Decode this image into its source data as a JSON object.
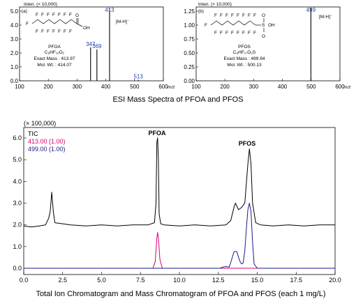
{
  "captions": {
    "spectra": "ESI Mass Spectra of PFOA and PFOS",
    "chromatogram": "Total Ion Chromatogram and Mass Chromatogram of PFOA and PFOS (each 1 mg/L)"
  },
  "colors": {
    "tic": "#000000",
    "m413": "#d4006e",
    "m499": "#1a1a8c",
    "peak_label": "#1f3fa8"
  },
  "chart_data": [
    {
      "type": "bar",
      "panel_label": "(a)",
      "yunit": "Inten. (× 10,000)",
      "xunit": "m/z",
      "xlim": [
        100,
        600
      ],
      "ylim": [
        0,
        5.0
      ],
      "xticks": [
        "100",
        "200",
        "300",
        "400",
        "500",
        "600"
      ],
      "yticks": [
        "0.0",
        "1.0",
        "2.0",
        "3.0",
        "4.0",
        "5.0"
      ],
      "peaks": [
        {
          "x": 347,
          "y": 2.4,
          "label": "347"
        },
        {
          "x": 369,
          "y": 2.25,
          "label": "369"
        },
        {
          "x": 413,
          "y": 5.3,
          "label": "413"
        },
        {
          "x": 513,
          "y": 0.07,
          "label": "513"
        }
      ],
      "ion_label": "[M-H]⁻",
      "compound": {
        "name": "PFOA",
        "formula": "C₈HF₁₅O₂",
        "exact_mass": "Exact Mass : 413.97",
        "mol_wt": "Mol. Wt. : 414.07"
      },
      "structure": {
        "atoms": [
          "F",
          "O",
          "OH"
        ]
      }
    },
    {
      "type": "bar",
      "panel_label": "(b)",
      "yunit": "Inten. (× 10,000)",
      "xunit": "m/z",
      "xlim": [
        100,
        600
      ],
      "ylim": [
        0,
        1.25
      ],
      "xticks": [
        "100",
        "200",
        "300",
        "400",
        "500",
        "600"
      ],
      "yticks": [
        "0.00",
        "0.25",
        "0.50",
        "0.75",
        "1.00",
        "1.25"
      ],
      "peaks": [
        {
          "x": 499,
          "y": 1.32,
          "label": "499"
        }
      ],
      "ion_label": "[M-H]⁻",
      "compound": {
        "name": "PFOS",
        "formula": "C₈HF₁₇O₃S",
        "exact_mass": "Exact Mass : 499.94",
        "mol_wt": "Mol. Wt. : 500.13"
      },
      "structure": {
        "atoms": [
          "F",
          "S",
          "OH",
          "O"
        ]
      }
    },
    {
      "type": "line",
      "yunit": "(× 100,000)",
      "xlim": [
        0,
        20
      ],
      "ylim": [
        0,
        6.0
      ],
      "xticks": [
        "0.0",
        "2.5",
        "5.0",
        "7.5",
        "10.0",
        "12.5",
        "15.0",
        "17.5",
        "20.0"
      ],
      "yticks": [
        "0.0",
        "1.0",
        "2.0",
        "3.0",
        "4.0",
        "5.0",
        "6.0"
      ],
      "legend": [
        {
          "label": "TIC",
          "color": "#000000"
        },
        {
          "label": "413.00 (1.00)",
          "color": "#d4006e"
        },
        {
          "label": "499.00 (1.00)",
          "color": "#1a1a8c"
        }
      ],
      "annotations": [
        {
          "text": "PFOA",
          "x": 8.6
        },
        {
          "text": "PFOS",
          "x": 14.5
        }
      ],
      "series": [
        {
          "name": "TIC",
          "x": [
            0,
            0.5,
            1.0,
            1.4,
            1.6,
            1.7,
            1.8,
            1.9,
            2.0,
            3.0,
            4.0,
            5.0,
            6.0,
            7.0,
            8.0,
            8.4,
            8.5,
            8.55,
            8.6,
            8.65,
            8.7,
            8.8,
            9.0,
            10.0,
            11.0,
            12.0,
            13.0,
            13.3,
            13.5,
            13.6,
            13.8,
            14.0,
            14.2,
            14.4,
            14.5,
            14.6,
            14.7,
            14.9,
            15.2,
            16.0,
            17.0,
            18.0,
            19.0,
            20.0
          ],
          "y": [
            1.95,
            1.9,
            1.95,
            2.0,
            2.3,
            2.6,
            3.5,
            2.6,
            2.1,
            2.0,
            1.95,
            2.0,
            1.95,
            2.0,
            2.0,
            2.1,
            3.0,
            5.8,
            6.0,
            5.0,
            2.5,
            2.05,
            2.0,
            1.95,
            2.0,
            1.95,
            2.0,
            2.2,
            2.8,
            3.0,
            2.7,
            2.8,
            3.0,
            4.8,
            5.5,
            4.8,
            3.0,
            2.1,
            2.0,
            1.95,
            2.0,
            1.95,
            2.0,
            2.0
          ]
        },
        {
          "name": "413.00 (1.00)",
          "x": [
            0,
            8.3,
            8.45,
            8.55,
            8.6,
            8.65,
            8.75,
            8.9,
            20.0
          ],
          "y": [
            0,
            0,
            0.3,
            1.4,
            1.65,
            1.4,
            0.4,
            0,
            0
          ]
        },
        {
          "name": "499.00 (1.00)",
          "x": [
            0,
            12.6,
            12.8,
            13.0,
            13.2,
            13.4,
            13.5,
            13.6,
            13.7,
            13.8,
            13.9,
            14.0,
            14.1,
            14.2,
            14.3,
            14.4,
            14.5,
            14.6,
            14.7,
            14.8,
            15.0,
            20.0
          ],
          "y": [
            0,
            0,
            0.05,
            0.08,
            0.05,
            0.5,
            0.75,
            0.78,
            0.75,
            0.5,
            0.3,
            0.2,
            0.25,
            0.8,
            1.8,
            2.7,
            3.0,
            2.6,
            1.2,
            0.2,
            0,
            0
          ]
        }
      ]
    }
  ]
}
